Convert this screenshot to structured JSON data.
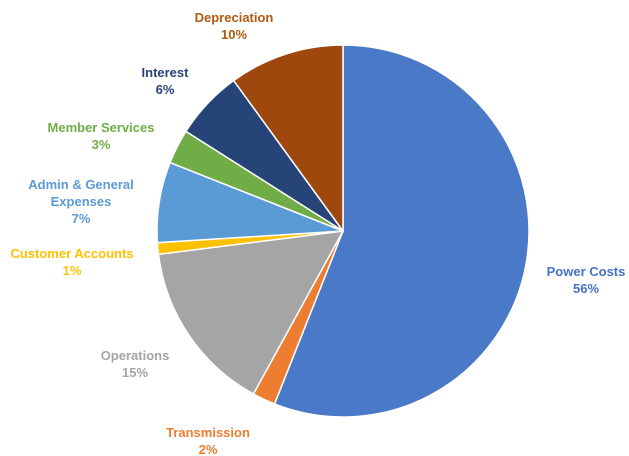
{
  "chart_data": {
    "type": "pie",
    "title": "",
    "slices": [
      {
        "name": "Power Costs",
        "value": 56,
        "pct_label": "56%",
        "color": "#4a7ac7"
      },
      {
        "name": "Transmission",
        "value": 2,
        "pct_label": "2%",
        "color": "#ed7d31"
      },
      {
        "name": "Operations",
        "value": 15,
        "pct_label": "15%",
        "color": "#a5a5a5"
      },
      {
        "name": "Customer Accounts",
        "value": 1,
        "pct_label": "1%",
        "color": "#ffc000"
      },
      {
        "name": "Admin & General Expenses",
        "value": 7,
        "pct_label": "7%",
        "color": "#5b9bd5"
      },
      {
        "name": "Member Services",
        "value": 3,
        "pct_label": "3%",
        "color": "#70ad47"
      },
      {
        "name": "Interest",
        "value": 6,
        "pct_label": "6%",
        "color": "#264478"
      },
      {
        "name": "Depreciation",
        "value": 10,
        "pct_label": "10%",
        "color": "#9e480e"
      }
    ],
    "legend": "none",
    "label_colors": {
      "Power Costs": "#4472c4",
      "Transmission": "#ed7d31",
      "Operations": "#a5a5a5",
      "Customer Accounts": "#ffc000",
      "Admin & General Expenses": "#5b9bd5",
      "Member Services": "#70ad47",
      "Interest": "#264478",
      "Depreciation": "#b05a12"
    }
  }
}
